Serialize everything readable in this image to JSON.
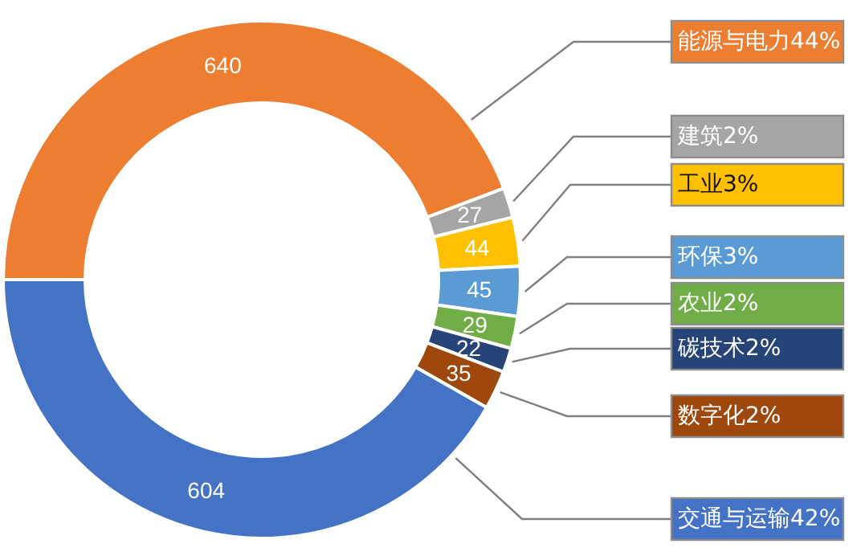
{
  "chart_data": {
    "type": "donut",
    "categories": [
      "能源与电力44%",
      "建筑2%",
      "工业3%",
      "环保3%",
      "农业2%",
      "碳技术2%",
      "数字化2%",
      "交通与运输42%"
    ],
    "values": [
      640,
      27,
      44,
      45,
      29,
      22,
      35,
      604
    ],
    "colors": [
      "#ed7d31",
      "#a5a5a5",
      "#ffc000",
      "#5b9bd5",
      "#70ad47",
      "#264478",
      "#9e480e",
      "#4472c4"
    ],
    "data_labels": true
  }
}
